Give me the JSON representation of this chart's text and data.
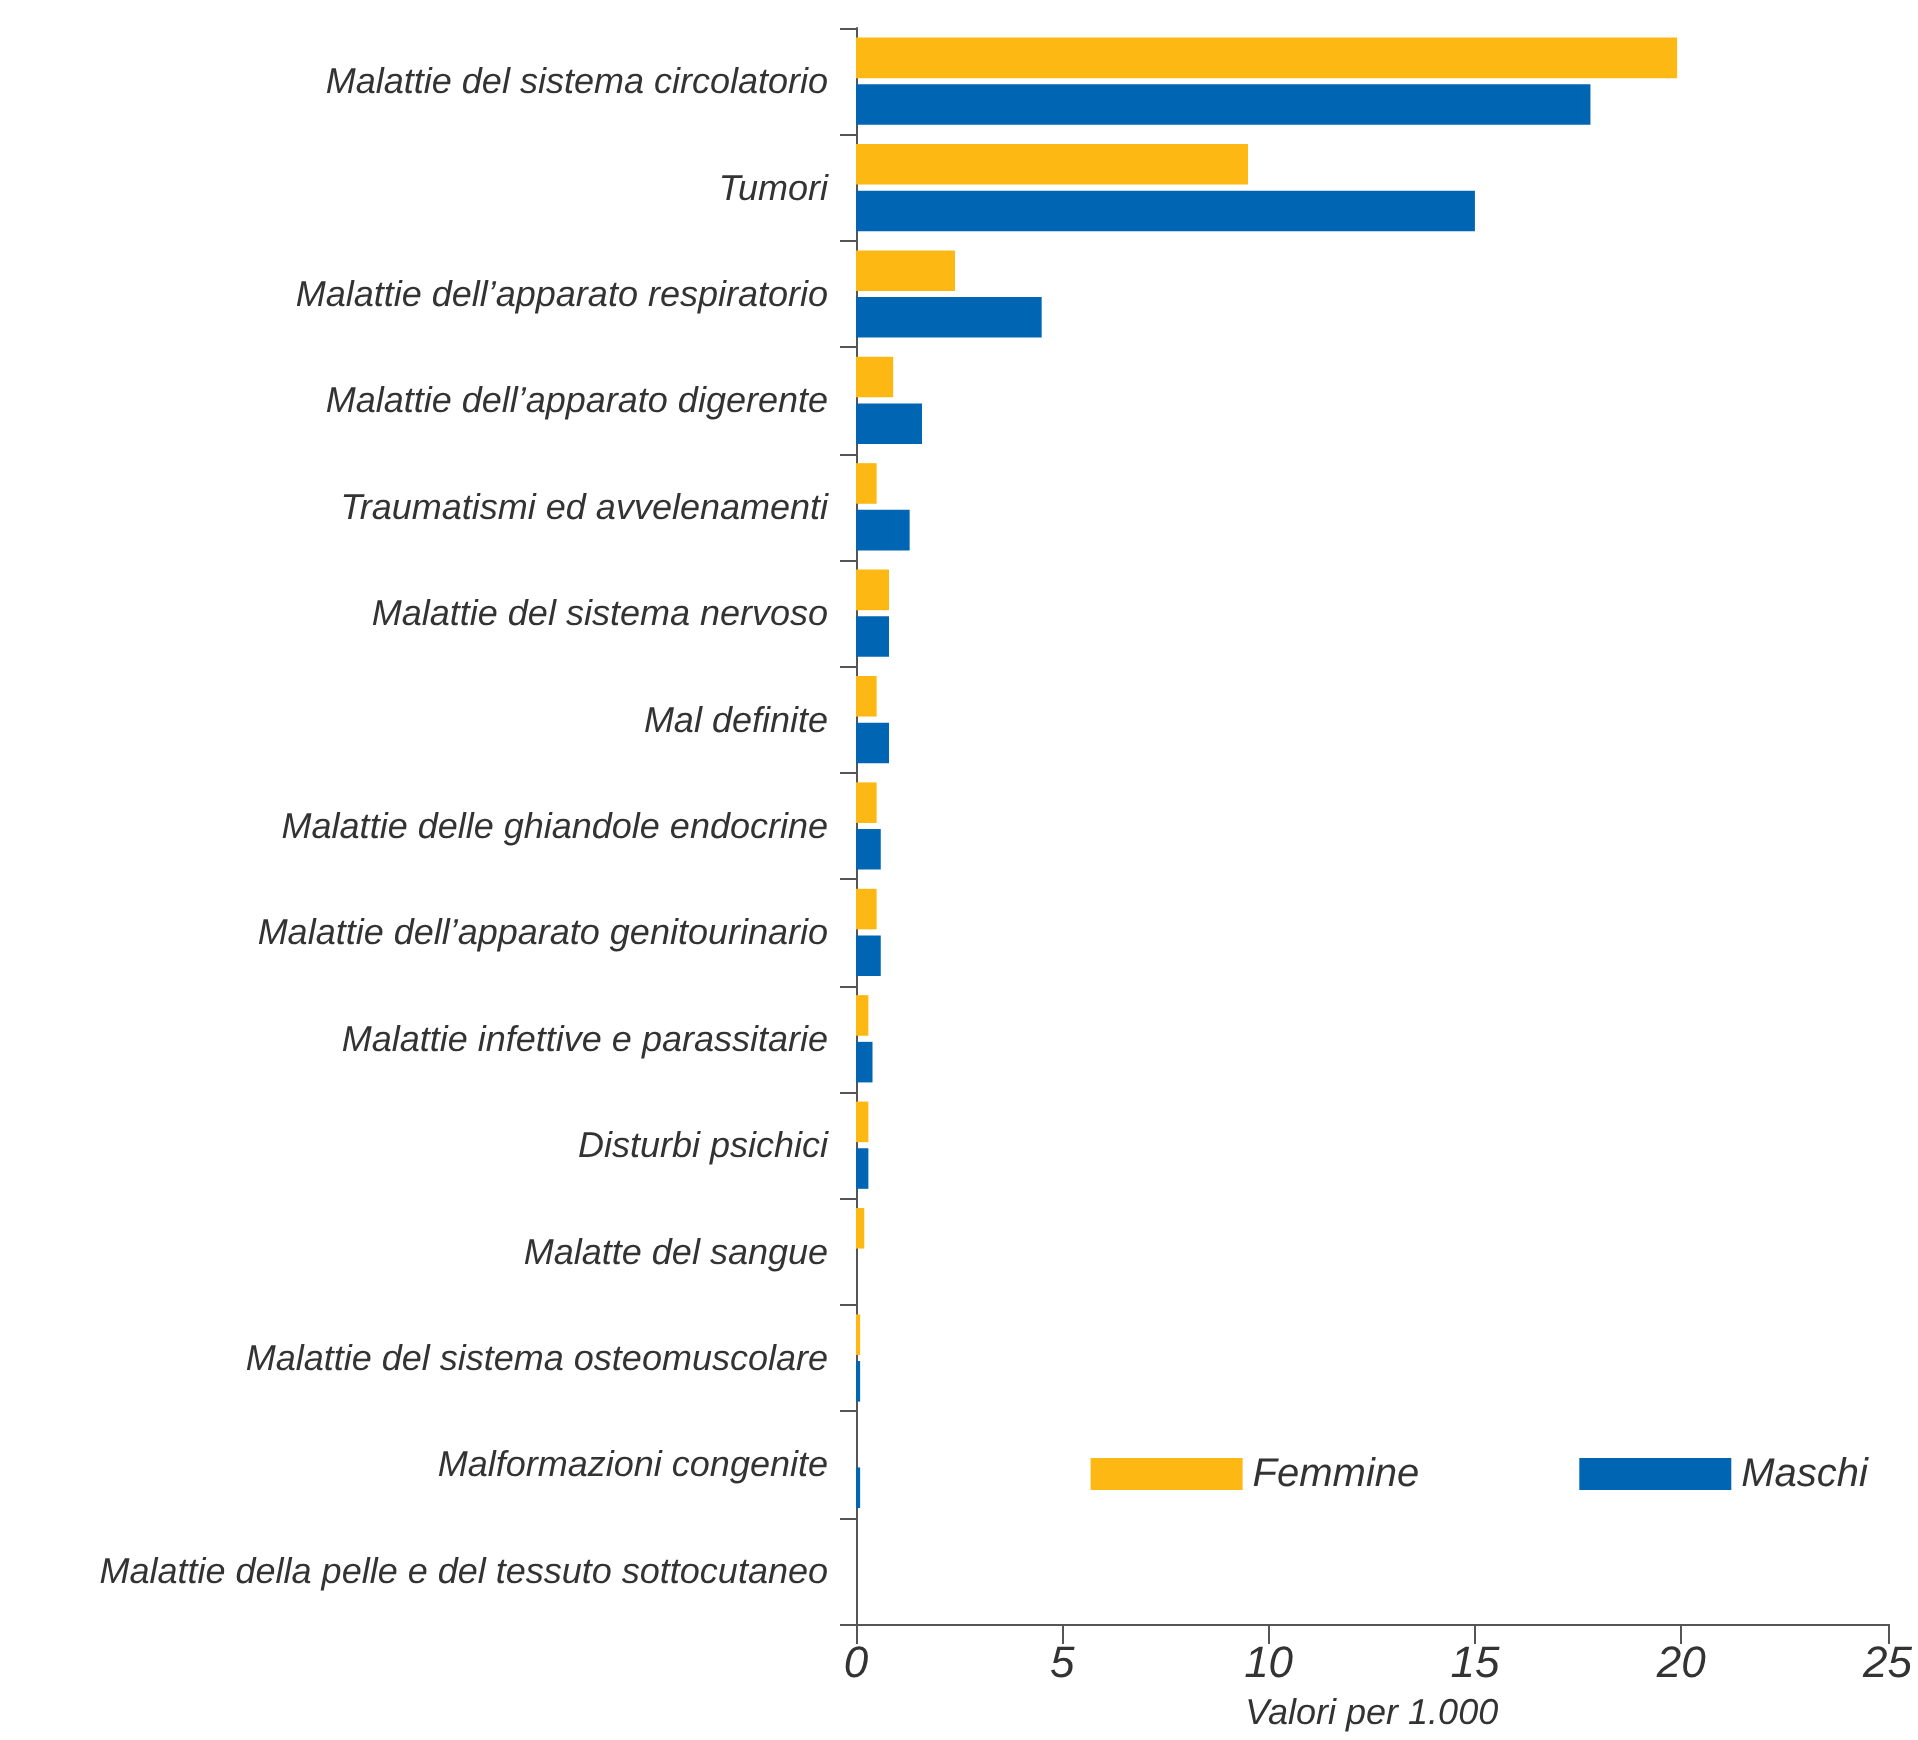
{
  "chart_data": {
    "type": "bar",
    "orientation": "horizontal",
    "xlabel": "Valori per 1.000",
    "categories": [
      "Malattie del sistema circolatorio",
      "Tumori",
      "Malattie dell’apparato respiratorio",
      "Malattie dell’apparato digerente",
      "Traumatismi ed avvelenamenti",
      "Malattie del sistema nervoso",
      "Mal definite",
      "Malattie delle ghiandole endocrine",
      "Malattie dell’apparato genitourinario",
      "Malattie infettive e parassitarie",
      "Disturbi psichici",
      "Malatte del sangue",
      "Malattie del sistema osteomuscolare",
      "Malformazioni congenite",
      "Malattie della pelle e del tessuto sottocutaneo"
    ],
    "series": [
      {
        "name": "Femmine",
        "color": "#fdb813",
        "values": [
          19.9,
          9.5,
          2.4,
          0.9,
          0.5,
          0.8,
          0.5,
          0.5,
          0.5,
          0.3,
          0.3,
          0.2,
          0.1,
          0,
          0
        ]
      },
      {
        "name": "Maschi",
        "color": "#0066b3",
        "values": [
          17.8,
          15.0,
          4.5,
          1.6,
          1.3,
          0.8,
          0.8,
          0.6,
          0.6,
          0.4,
          0.3,
          0,
          0.1,
          0.1,
          0
        ]
      }
    ],
    "xlim": [
      0,
      25
    ],
    "xticks": [
      0,
      5,
      10,
      15,
      20,
      25
    ],
    "grid": false,
    "legend": "bottom right"
  }
}
